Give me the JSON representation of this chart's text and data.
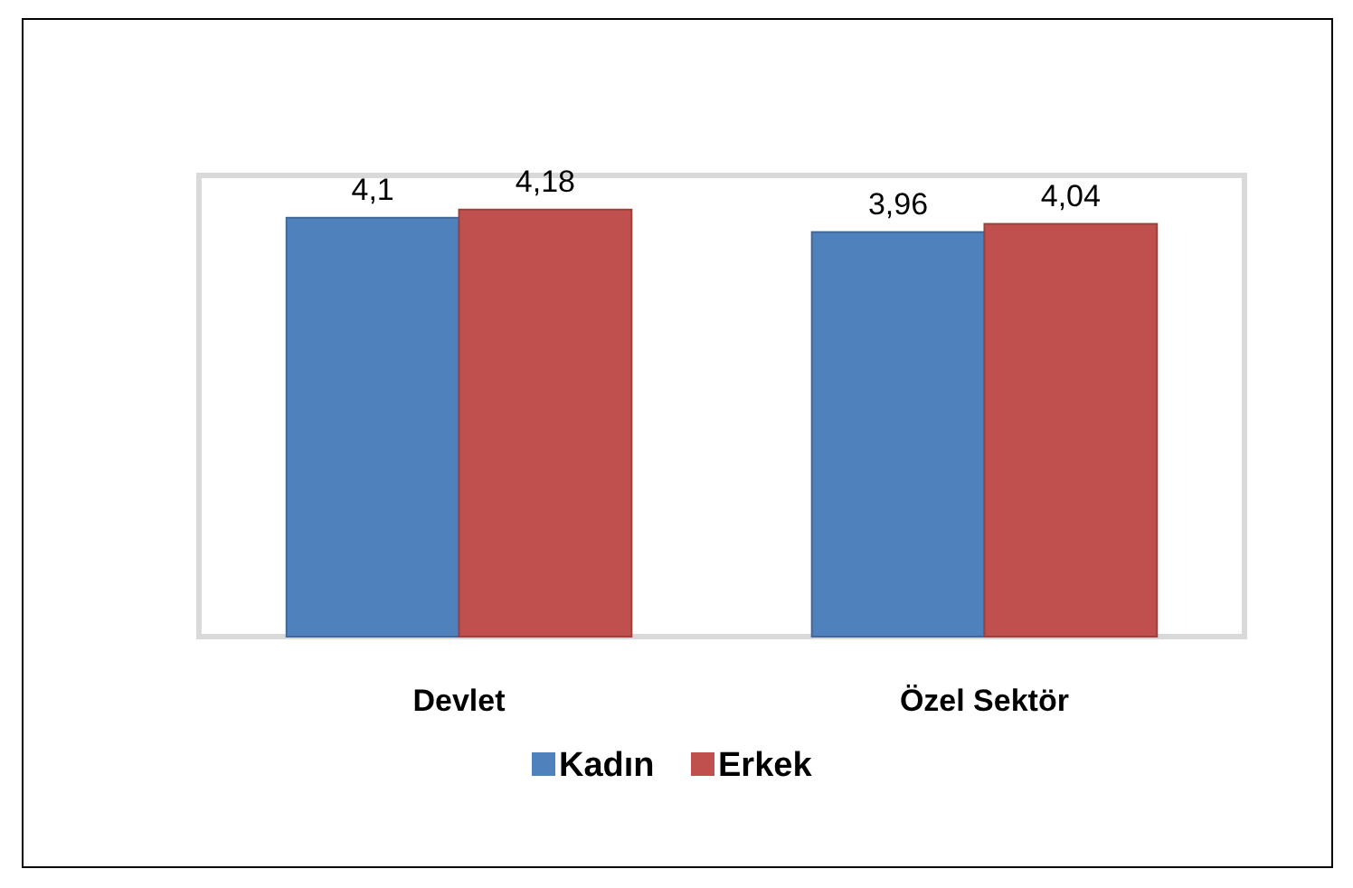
{
  "chart_data": {
    "type": "bar",
    "categories": [
      "Devlet",
      "Özel Sektör"
    ],
    "series": [
      {
        "name": "Kadın",
        "color": "#4f81bd",
        "values": [
          4.1,
          3.96
        ],
        "value_labels": [
          "4,1",
          "3,96"
        ]
      },
      {
        "name": "Erkek",
        "color": "#c0504d",
        "values": [
          4.18,
          4.04
        ],
        "value_labels": [
          "4,18",
          "4,04"
        ]
      }
    ],
    "legend": "bottom"
  }
}
